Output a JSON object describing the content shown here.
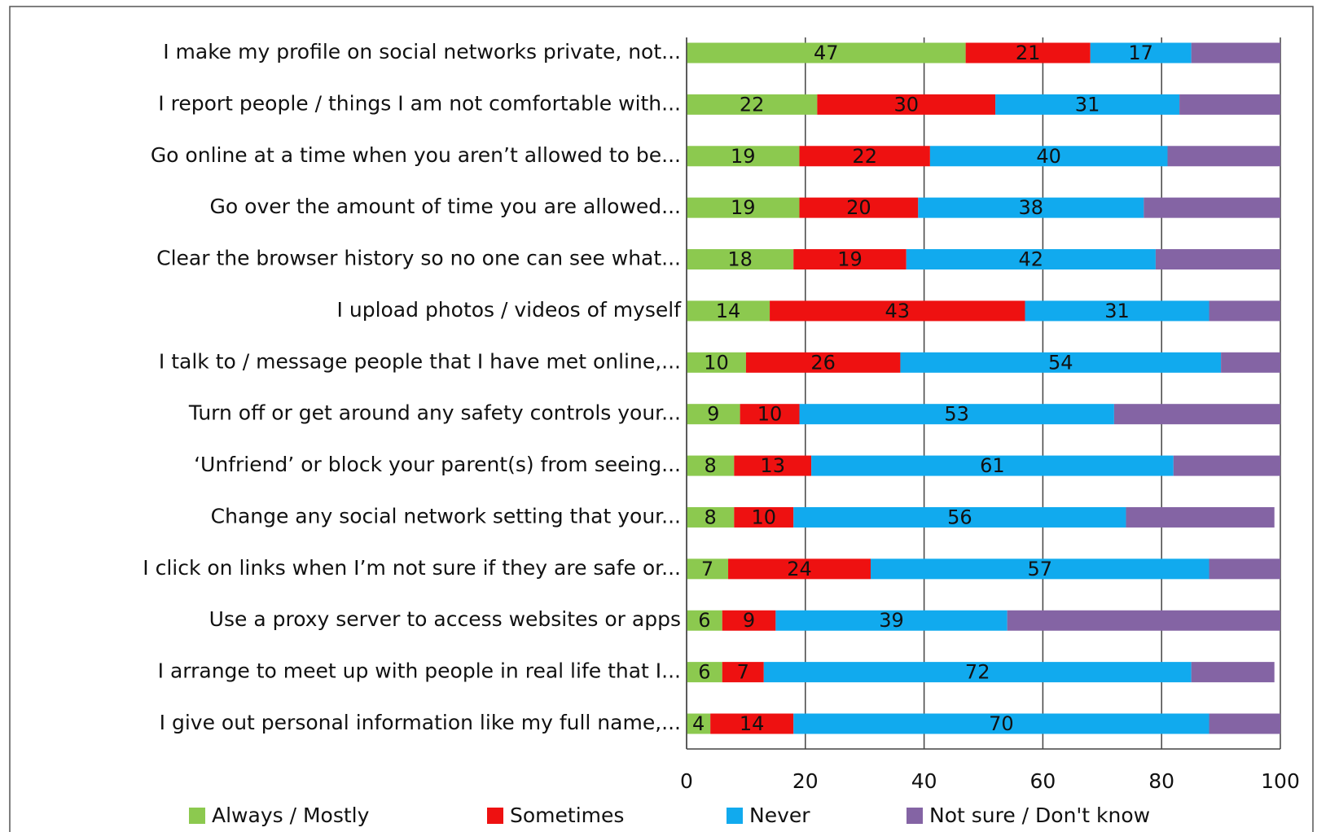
{
  "chart_data": {
    "type": "stacked_barh",
    "categories": [
      "I make my profile on social networks private, not...",
      "I report people / things I am not comfortable with...",
      "Go online at a time when you aren’t allowed to be...",
      "Go over the amount of time you are allowed...",
      "Clear the browser history so no one can see what...",
      "I upload photos / videos of myself",
      "I talk to / message people that I have met online,...",
      "Turn off or get around any safety controls your...",
      "‘Unfriend’ or block your parent(s) from seeing...",
      "Change any social network setting that your...",
      "I click on links when I’m not sure if they are safe or...",
      "Use a proxy server to access websites or apps",
      "I arrange to meet up with people in real life that I...",
      "I give out personal information like my full name,..."
    ],
    "series": [
      {
        "name": "Always / Mostly",
        "color": "#8cc94f",
        "data_labels": true,
        "values": [
          47,
          22,
          19,
          19,
          18,
          14,
          10,
          9,
          8,
          8,
          7,
          6,
          6,
          4
        ]
      },
      {
        "name": "Sometimes",
        "color": "#ee1111",
        "data_labels": true,
        "values": [
          21,
          30,
          22,
          20,
          19,
          43,
          26,
          10,
          13,
          10,
          24,
          9,
          7,
          14
        ]
      },
      {
        "name": "Never",
        "color": "#11aaee",
        "data_labels": true,
        "values": [
          17,
          31,
          40,
          38,
          42,
          31,
          54,
          53,
          61,
          56,
          57,
          39,
          72,
          70
        ]
      },
      {
        "name": "Not sure / Don't know",
        "color": "#8464a4",
        "data_labels": false,
        "values": [
          15,
          17,
          19,
          23,
          21,
          12,
          10,
          28,
          18,
          25,
          12,
          46,
          14,
          12
        ]
      }
    ],
    "xlim": [
      0,
      100
    ],
    "xticks": [
      0,
      20,
      40,
      60,
      80,
      100
    ],
    "grid": true
  }
}
